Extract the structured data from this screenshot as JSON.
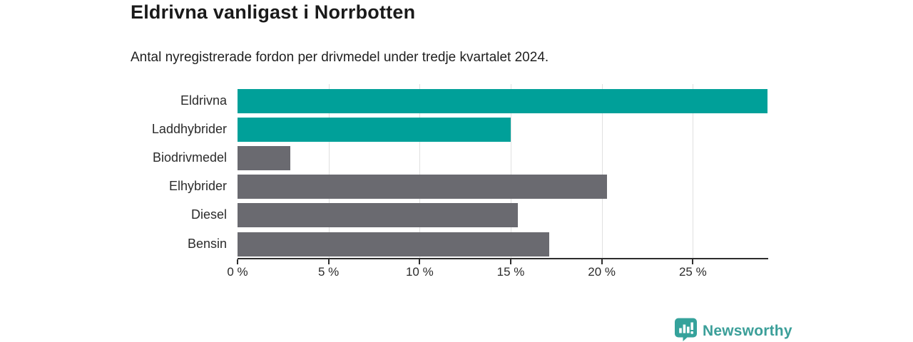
{
  "header": {
    "title": "Eldrivna vanligast i Norrbotten",
    "subtitle": "Antal nyregistrerade fordon per drivmedel under tredje kvartalet 2024."
  },
  "chart_data": {
    "type": "bar",
    "orientation": "horizontal",
    "title": "Eldrivna vanligast i Norrbotten",
    "subtitle": "Antal nyregistrerade fordon per drivmedel under tredje kvartalet 2024.",
    "categories": [
      "Eldrivna",
      "Laddhybrider",
      "Biodrivmedel",
      "Elhybrider",
      "Diesel",
      "Bensin"
    ],
    "values": [
      29.1,
      15.0,
      2.9,
      20.3,
      15.4,
      17.1
    ],
    "unit": "%",
    "bar_colors": [
      "#00a099",
      "#00a099",
      "#6a6a70",
      "#6a6a70",
      "#6a6a70",
      "#6a6a70"
    ],
    "x_ticks": [
      0,
      5,
      10,
      15,
      20,
      25
    ],
    "x_tick_labels": [
      "0 %",
      "5 %",
      "10 %",
      "15 %",
      "20 %",
      "25 %"
    ],
    "xlim": [
      0,
      29.1
    ],
    "grid": "vertical-only",
    "legend": "none"
  },
  "branding": {
    "logo_text": "Newsworthy",
    "logo_color": "#3b9f99",
    "icon_color": "#35a29b",
    "icon": "bar-chart-speech-bubble-icon"
  },
  "colors": {
    "accent_teal": "#00a099",
    "bar_gray": "#6a6a70",
    "gridline": "#e0e0e0",
    "axis": "#2d2d2d",
    "text": "#1a1a1a"
  }
}
